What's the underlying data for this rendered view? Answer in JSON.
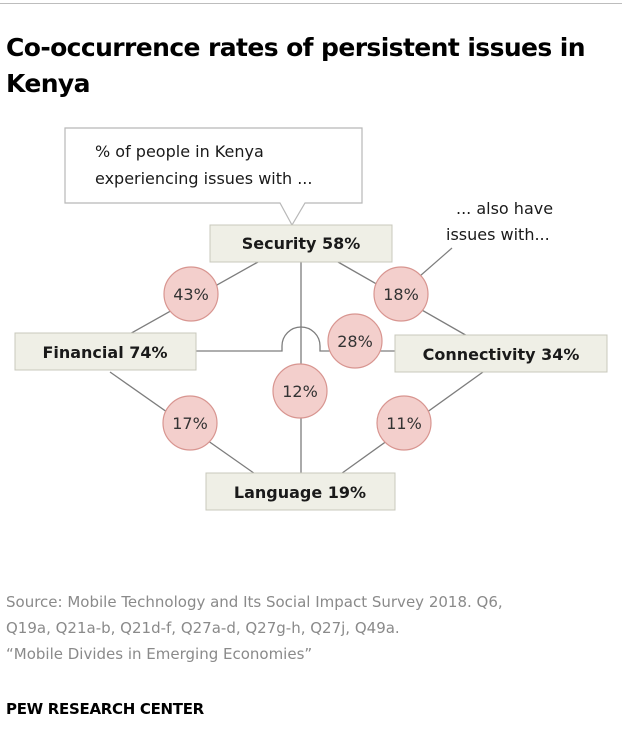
{
  "title": "Co-occurrence rates of persistent issues in Kenya",
  "callout": {
    "line1": "% of people in Kenya",
    "line2": "experiencing issues with ..."
  },
  "side_note": {
    "line1": "... also have",
    "line2": "issues with..."
  },
  "nodes": {
    "security": "Security 58%",
    "financial": "Financial 74%",
    "connectivity": "Connectivity 34%",
    "language": "Language 19%"
  },
  "rates": {
    "security_financial": "43%",
    "security_connectivity": "18%",
    "financial_connectivity": "28%",
    "security_language": "12%",
    "financial_language": "17%",
    "connectivity_language": "11%"
  },
  "source": {
    "line1": "Source: Mobile Technology and Its Social Impact Survey 2018. Q6,",
    "line2": "Q19a, Q21a-b, Q21d-f, Q27a-d, Q27g-h, Q27j, Q49a.",
    "line3": "“Mobile Divides in Emerging Economies”"
  },
  "brand": "PEW RESEARCH CENTER",
  "colors": {
    "node_fill": "#efefe6",
    "node_stroke": "#c8c8bc",
    "bubble_fill": "#f3cfcc",
    "bubble_stroke": "#d89590",
    "line": "#7d7d7d"
  }
}
